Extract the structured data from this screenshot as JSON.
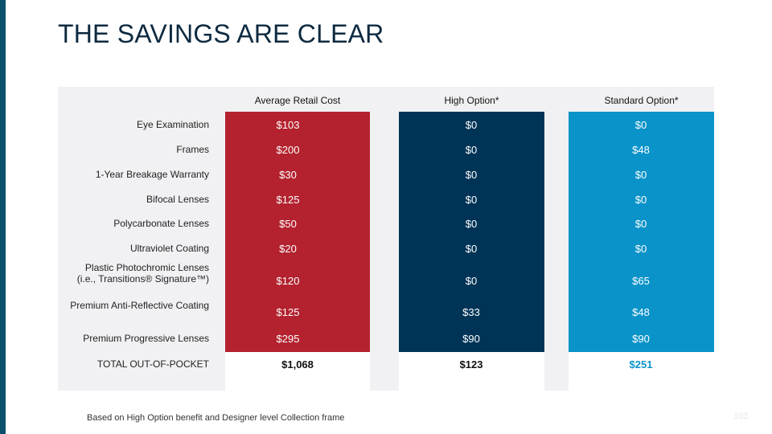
{
  "title": "THE SAVINGS ARE CLEAR",
  "columns": {
    "retail": "Average Retail Cost",
    "high": "High Option*",
    "standard": "Standard Option*"
  },
  "rows": [
    {
      "label": "Eye Examination",
      "retail": "$103",
      "high": "$0",
      "standard": "$0"
    },
    {
      "label": "Frames",
      "retail": "$200",
      "high": "$0",
      "standard": "$48"
    },
    {
      "label": "1-Year Breakage Warranty",
      "retail": "$30",
      "high": "$0",
      "standard": "$0"
    },
    {
      "label": "Bifocal Lenses",
      "retail": "$125",
      "high": "$0",
      "standard": "$0"
    },
    {
      "label": "Polycarbonate Lenses",
      "retail": "$50",
      "high": "$0",
      "standard": "$0"
    },
    {
      "label": "Ultraviolet Coating",
      "retail": "$20",
      "high": "$0",
      "standard": "$0"
    },
    {
      "label_line1": "Plastic Photochromic Lenses",
      "label_line2": "(i.e., Transitions® Signature™)",
      "retail": "$120",
      "high": "$0",
      "standard": "$65"
    },
    {
      "label": "Premium Anti-Reflective Coating",
      "retail": "$125",
      "high": "$33",
      "standard": "$48"
    },
    {
      "label": "Premium Progressive Lenses",
      "retail": "$295",
      "high": "$90",
      "standard": "$90"
    }
  ],
  "total": {
    "label": "TOTAL OUT-OF-POCKET",
    "retail": "$1,068",
    "high": "$123",
    "standard": "$251"
  },
  "footnote": "Based on High Option benefit and Designer level Collection frame",
  "page_number": "103",
  "colors": {
    "retail": "#b3222e",
    "high": "#003457",
    "standard": "#0a93c9",
    "accent_bar": "#0b4f6c"
  }
}
